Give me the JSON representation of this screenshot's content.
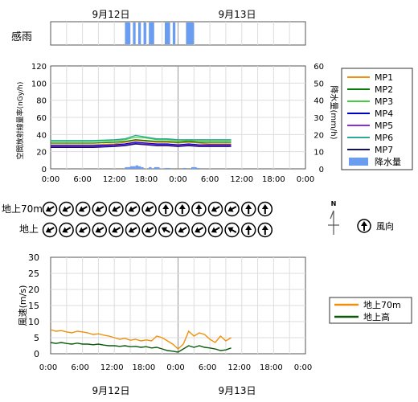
{
  "dates": {
    "top": [
      "9月12日",
      "9月13日"
    ],
    "bottom": [
      "9月12日",
      "9月13日"
    ]
  },
  "rain_sense": {
    "label": "感雨",
    "color": "#6a9cf0"
  },
  "time_ticks": [
    "0:00",
    "6:00",
    "12:00",
    "18:00",
    "0:00",
    "6:00",
    "12:00",
    "18:00",
    "0:00"
  ],
  "wind_direction": {
    "rows": [
      "地上70m",
      "地上"
    ],
    "legend_label": "風向",
    "north_label": "N"
  },
  "chart_data": [
    {
      "type": "line",
      "name": "dose_rate",
      "ylabel": "空間放射線量率(nGy/h)",
      "y2label": "降水量(mm/h)",
      "ylim": [
        0,
        120
      ],
      "y2lim": [
        0,
        60
      ],
      "yticks": [
        "0",
        "20",
        "40",
        "60",
        "80",
        "100",
        "120"
      ],
      "y2ticks": [
        "0",
        "10",
        "20",
        "30",
        "40",
        "50",
        "60"
      ],
      "xlim_hours": [
        0,
        48
      ],
      "grid": true,
      "legend_position": "right",
      "series": [
        {
          "name": "MP1",
          "color": "#f0900c",
          "x": [
            0,
            4,
            8,
            12,
            14,
            16,
            18,
            20,
            22,
            24,
            26,
            28,
            30,
            32,
            34
          ],
          "values": [
            28,
            28,
            28,
            29,
            31,
            33,
            32,
            31,
            31,
            30,
            31,
            30,
            29,
            29,
            29
          ]
        },
        {
          "name": "MP2",
          "color": "#0a7a0a",
          "x": [
            0,
            4,
            8,
            12,
            14,
            16,
            18,
            20,
            22,
            24,
            26,
            28,
            30,
            32,
            34
          ],
          "values": [
            30,
            30,
            30,
            31,
            32,
            34,
            33,
            32,
            32,
            31,
            32,
            31,
            31,
            31,
            31
          ]
        },
        {
          "name": "MP3",
          "color": "#44cc44",
          "x": [
            0,
            4,
            8,
            12,
            14,
            16,
            18,
            20,
            22,
            24,
            26,
            28,
            30,
            32,
            34
          ],
          "values": [
            32,
            32,
            32,
            33,
            34,
            37,
            36,
            34,
            34,
            33,
            33,
            33,
            33,
            33,
            33
          ]
        },
        {
          "name": "MP4",
          "color": "#0000cc",
          "x": [
            0,
            4,
            8,
            12,
            14,
            16,
            18,
            20,
            22,
            24,
            26,
            28,
            30,
            32,
            34
          ],
          "values": [
            27,
            27,
            27,
            28,
            29,
            31,
            30,
            29,
            29,
            28,
            29,
            28,
            28,
            28,
            28
          ]
        },
        {
          "name": "MP5",
          "color": "#8a2be2",
          "x": [
            0,
            4,
            8,
            12,
            14,
            16,
            18,
            20,
            22,
            24,
            26,
            28,
            30,
            32,
            34
          ],
          "values": [
            26,
            26,
            26,
            27,
            28,
            30,
            29,
            28,
            28,
            27,
            28,
            27,
            27,
            27,
            27
          ]
        },
        {
          "name": "MP6",
          "color": "#2aa89a",
          "x": [
            0,
            4,
            8,
            12,
            14,
            16,
            18,
            20,
            22,
            24,
            26,
            28,
            30,
            32,
            34
          ],
          "values": [
            33,
            33,
            33,
            34,
            35,
            39,
            37,
            35,
            35,
            34,
            34,
            34,
            34,
            34,
            34
          ]
        },
        {
          "name": "MP7",
          "color": "#10106a",
          "x": [
            0,
            4,
            8,
            12,
            14,
            16,
            18,
            20,
            22,
            24,
            26,
            28,
            30,
            32,
            34
          ],
          "values": [
            25,
            25,
            25,
            26,
            27,
            29,
            28,
            27,
            27,
            26,
            27,
            26,
            26,
            26,
            26
          ]
        }
      ],
      "precipitation": {
        "name": "降水量",
        "color": "#6a9cf0",
        "x": [
          14,
          14.5,
          15,
          15.5,
          16,
          16.5,
          17,
          18.5,
          19.5,
          20,
          21.5,
          22,
          25,
          26.5,
          27,
          27.5
        ],
        "values": [
          1,
          1,
          1.5,
          1.5,
          2,
          1.5,
          1,
          1,
          1,
          1,
          0.5,
          0.5,
          0.5,
          1,
          1,
          0.5
        ]
      },
      "rain_sense_hours": [
        [
          14,
          15
        ],
        [
          15.5,
          16
        ],
        [
          16.5,
          17
        ],
        [
          17.5,
          18
        ],
        [
          18.5,
          19.5
        ],
        [
          21.5,
          22.5
        ],
        [
          23,
          23.5
        ],
        [
          25.5,
          27
        ]
      ]
    },
    {
      "type": "line",
      "name": "wind_speed",
      "ylabel": "風速(m/s)",
      "ylim": [
        0,
        30
      ],
      "yticks": [
        "0",
        "5",
        "10",
        "15",
        "20",
        "25",
        "30"
      ],
      "xlim_hours": [
        0,
        48
      ],
      "grid": true,
      "legend_position": "right",
      "series": [
        {
          "name": "地上70m",
          "color": "#f0900c",
          "x": [
            0,
            1,
            2,
            3,
            4,
            5,
            6,
            7,
            8,
            9,
            10,
            11,
            12,
            13,
            14,
            15,
            16,
            17,
            18,
            19,
            20,
            21,
            22,
            23,
            24,
            25,
            26,
            27,
            28,
            29,
            30,
            31,
            32,
            33,
            34
          ],
          "values": [
            7.5,
            7,
            7.2,
            6.8,
            6.5,
            7,
            6.8,
            6.5,
            6,
            6.2,
            5.8,
            5.5,
            5,
            4.5,
            4.8,
            4.2,
            4.5,
            4,
            4.3,
            4,
            5.5,
            5,
            4,
            3,
            1.5,
            3,
            7,
            5.5,
            6.5,
            6,
            4.5,
            3.5,
            5.5,
            4,
            5
          ]
        },
        {
          "name": "地上高",
          "color": "#0a5a0a",
          "x": [
            0,
            1,
            2,
            3,
            4,
            5,
            6,
            7,
            8,
            9,
            10,
            11,
            12,
            13,
            14,
            15,
            16,
            17,
            18,
            19,
            20,
            21,
            22,
            23,
            24,
            25,
            26,
            27,
            28,
            29,
            30,
            31,
            32,
            33,
            34
          ],
          "values": [
            3.5,
            3.2,
            3.5,
            3.2,
            3,
            3.3,
            3,
            3,
            2.8,
            3,
            2.7,
            2.5,
            2.5,
            2.3,
            2.5,
            2.2,
            2.3,
            2,
            2.2,
            1.8,
            2,
            1.5,
            1,
            0.8,
            0.5,
            1.5,
            2.5,
            2,
            2.5,
            2,
            1.8,
            1.5,
            1,
            1.2,
            1.8
          ]
        }
      ]
    }
  ],
  "wind_arrows": {
    "row70m_deg": [
      240,
      240,
      240,
      240,
      240,
      240,
      240,
      0,
      0,
      0,
      240,
      240,
      0,
      0
    ],
    "rowground_deg": [
      240,
      240,
      240,
      240,
      240,
      240,
      240,
      300,
      240,
      240,
      240,
      300,
      0,
      0
    ]
  }
}
